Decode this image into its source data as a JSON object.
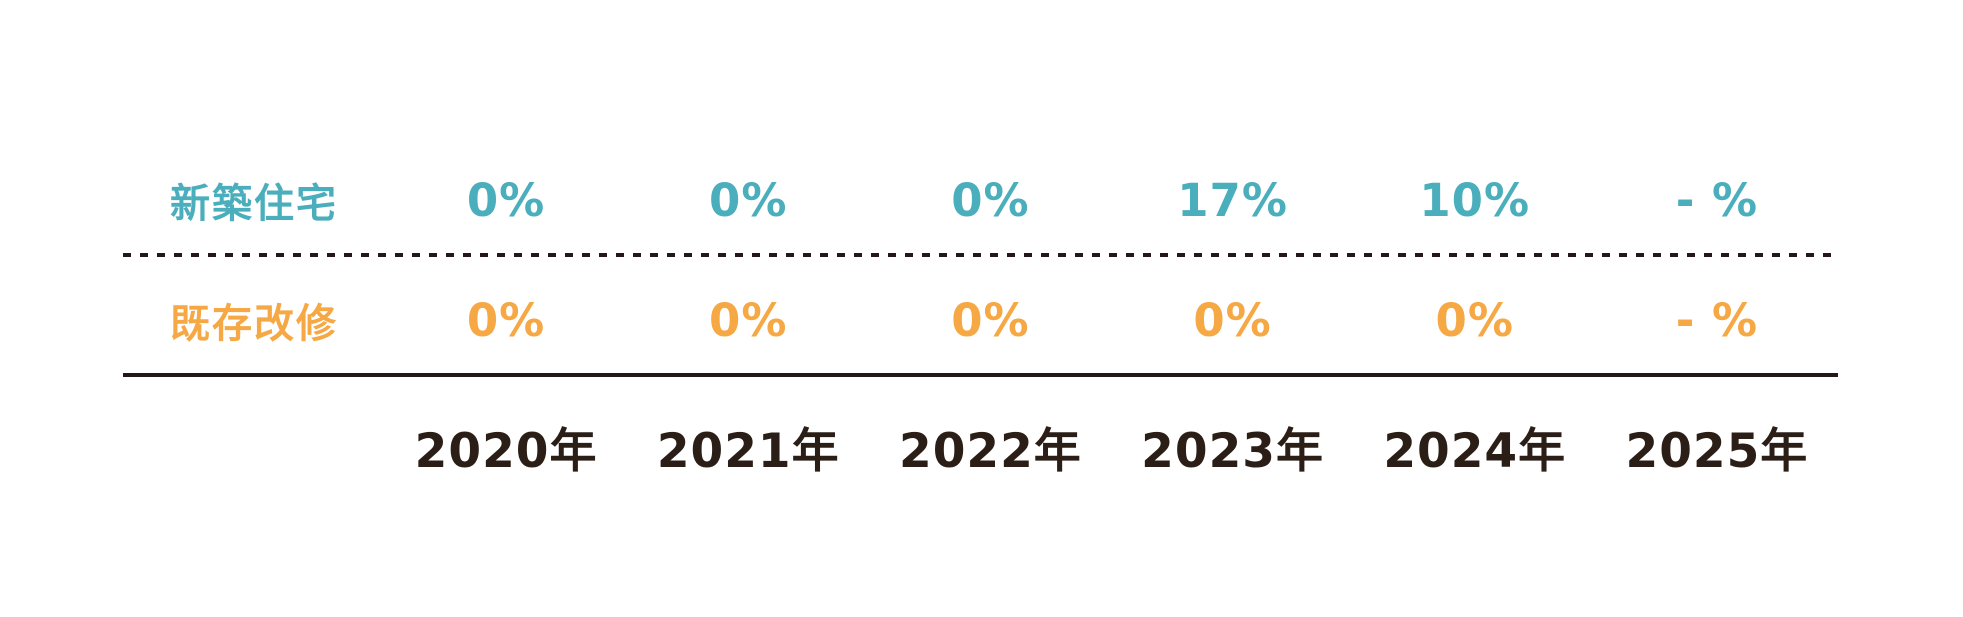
{
  "chart_data": {
    "type": "table",
    "title": "",
    "categories": [
      "2020年",
      "2021年",
      "2022年",
      "2023年",
      "2024年",
      "2025年"
    ],
    "series": [
      {
        "name": "新築住宅",
        "values": [
          "0%",
          "0%",
          "0%",
          "17%",
          "10%",
          "- %"
        ],
        "color": "#4BAEBC"
      },
      {
        "name": "既存改修",
        "values": [
          "0%",
          "0%",
          "0%",
          "0%",
          "0%",
          "- %"
        ],
        "color": "#F5A843"
      }
    ],
    "layout": {
      "row_divider_between_series": "dotted",
      "divider_above_categories": "solid",
      "background": "#ffffff",
      "text_color_categories": "#2B1E17",
      "line_color": "#231815"
    }
  }
}
